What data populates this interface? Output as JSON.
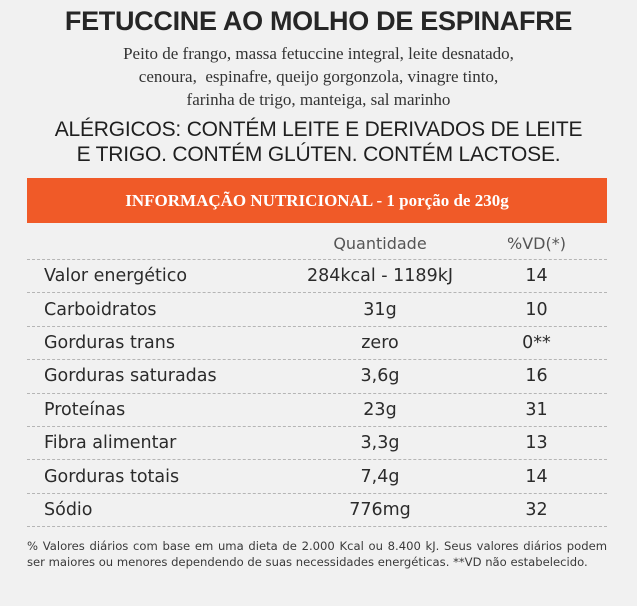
{
  "title": "FETUCCINE AO MOLHO DE ESPINAFRE",
  "ingredients": [
    "Peito de frango, massa fetuccine integral, leite desnatado,",
    "cenoura,  espinafre, queijo gorgonzola, vinagre tinto,",
    "farinha de trigo, manteiga, sal marinho"
  ],
  "allergens": [
    "ALÉRGICOS: CONTÉM LEITE E DERIVADOS DE LEITE",
    "E TRIGO. CONTÉM GLÚTEN. CONTÉM LACTOSE."
  ],
  "nutrition": {
    "banner": "INFORMAÇÃO NUTRICIONAL - 1 porção de 230g",
    "banner_color": "#f05a28",
    "headers": {
      "quantity": "Quantidade",
      "vd": "%VD(*)"
    },
    "rows": [
      {
        "name": "Valor energético",
        "quantity": "284kcal - 1189kJ",
        "vd": "14"
      },
      {
        "name": "Carboidratos",
        "quantity": "31g",
        "vd": "10"
      },
      {
        "name": "Gorduras trans",
        "quantity": "zero",
        "vd": "0**"
      },
      {
        "name": "Gorduras saturadas",
        "quantity": "3,6g",
        "vd": "16"
      },
      {
        "name": "Proteínas",
        "quantity": "23g",
        "vd": "31"
      },
      {
        "name": "Fibra alimentar",
        "quantity": "3,3g",
        "vd": "13"
      },
      {
        "name": "Gorduras totais",
        "quantity": "7,4g",
        "vd": "14"
      },
      {
        "name": "Sódio",
        "quantity": "776mg",
        "vd": "32"
      }
    ]
  },
  "footnote": "% Valores diários com base em uma dieta de 2.000 Kcal ou 8.400 kJ. Seus valores diários podem ser maiores ou menores dependendo de suas necessidades energéticas. **VD não estabelecido."
}
